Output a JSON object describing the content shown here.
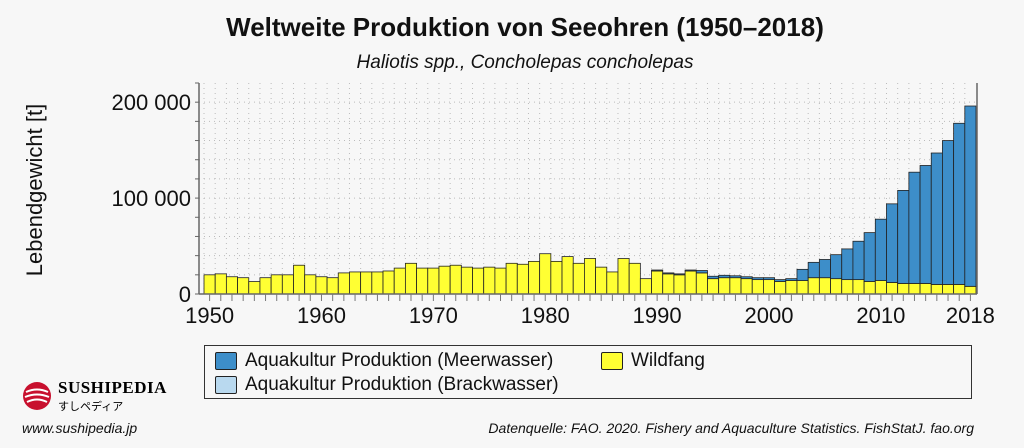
{
  "chart_data": {
    "type": "bar",
    "stacked": true,
    "title": "Weltweite Produktion von Seeohren (1950–2018)",
    "subtitle": "Haliotis spp., Concholepas concholepas",
    "ylabel": "Lebendgewicht [t]",
    "xlabel": "",
    "ylim": [
      0,
      220000
    ],
    "yticks": [
      0,
      100000,
      200000
    ],
    "ytick_labels": [
      "0",
      "100 000",
      "200 000"
    ],
    "xticks": [
      1950,
      1960,
      1970,
      1980,
      1990,
      2000,
      2010,
      2018
    ],
    "xtick_labels": [
      "1950",
      "1960",
      "1970",
      "1980",
      "1990",
      "2000",
      "2010",
      "2018"
    ],
    "grid": true,
    "legend_position": "bottom",
    "x_start": 1950,
    "x_end": 2018,
    "series": [
      {
        "name": "Wildfang",
        "color": "#ffff33",
        "values": [
          20000,
          21000,
          18000,
          17000,
          13000,
          17000,
          20000,
          20000,
          30000,
          20000,
          18000,
          17000,
          22000,
          23000,
          23000,
          23000,
          24000,
          27000,
          32000,
          27000,
          27000,
          29000,
          30000,
          28000,
          27000,
          28000,
          27000,
          32000,
          31000,
          34000,
          42000,
          34000,
          39000,
          32000,
          37000,
          28000,
          23000,
          37000,
          32000,
          16000,
          24000,
          21000,
          20000,
          24000,
          22000,
          16000,
          17000,
          17000,
          16000,
          15000,
          15000,
          13000,
          14000,
          14000,
          17000,
          17000,
          16000,
          15000,
          15000,
          13000,
          14000,
          12000,
          11000,
          11000,
          11000,
          10000,
          10000,
          10000,
          8000
        ]
      },
      {
        "name": "Aquakultur Produktion (Meerwasser)",
        "color": "#3d8ec9",
        "values": [
          0,
          0,
          0,
          0,
          0,
          0,
          0,
          0,
          0,
          0,
          0,
          0,
          0,
          0,
          0,
          0,
          0,
          0,
          0,
          0,
          0,
          0,
          0,
          0,
          0,
          0,
          0,
          0,
          0,
          0,
          0,
          0,
          0,
          0,
          0,
          0,
          0,
          0,
          0,
          0,
          1000,
          1000,
          1000,
          1000,
          2500,
          2500,
          2500,
          2000,
          2000,
          2000,
          2000,
          2000,
          2000,
          11700,
          16000,
          19000,
          25000,
          32000,
          40000,
          51000,
          64000,
          82000,
          97000,
          116000,
          123000,
          137000,
          150000,
          168000,
          188000
        ]
      },
      {
        "name": "Aquakultur Produktion (Brackwasser)",
        "color": "#b9d9ef",
        "values": [
          0,
          0,
          0,
          0,
          0,
          0,
          0,
          0,
          0,
          0,
          0,
          0,
          0,
          0,
          0,
          0,
          0,
          0,
          0,
          0,
          0,
          0,
          0,
          0,
          0,
          0,
          0,
          0,
          0,
          0,
          0,
          0,
          0,
          0,
          0,
          0,
          0,
          0,
          0,
          0,
          0,
          0,
          0,
          0,
          0,
          0,
          0,
          0,
          0,
          0,
          0,
          0,
          0,
          0,
          0,
          0,
          0,
          0,
          0,
          0,
          0,
          0,
          0,
          0,
          0,
          0,
          0,
          0,
          0
        ]
      }
    ]
  },
  "legend": {
    "items": [
      {
        "label": "Aquakultur Produktion (Meerwasser)",
        "color": "#3d8ec9"
      },
      {
        "label": "Wildfang",
        "color": "#ffff33"
      },
      {
        "label": "Aquakultur Produktion (Brackwasser)",
        "color": "#b9d9ef"
      }
    ]
  },
  "footer": {
    "brand": "SUSHIPEDIA",
    "brand_jp": "すしペディア",
    "url": "www.sushipedia.jp",
    "source": "Datenquelle: FAO. 2020. Fishery and Aquaculture Statistics. FishStatJ. fao.org"
  }
}
